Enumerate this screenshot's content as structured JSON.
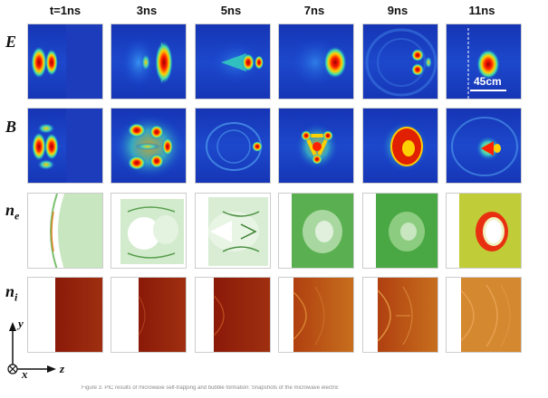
{
  "figure": {
    "time_labels": [
      "t=1ns",
      "3ns",
      "5ns",
      "7ns",
      "9ns",
      "11ns"
    ],
    "rows": [
      {
        "symbol": "E",
        "sub": ""
      },
      {
        "symbol": "B",
        "sub": ""
      },
      {
        "symbol": "n",
        "sub": "e"
      },
      {
        "symbol": "n",
        "sub": "i"
      }
    ],
    "scale_bar_label": "45cm",
    "axes": {
      "y": "y",
      "x": "x",
      "z": "z"
    },
    "caption": "Figure 3. PIC results of microwave self-trapping and bubble formation: Snapshots of the microwave electric"
  }
}
